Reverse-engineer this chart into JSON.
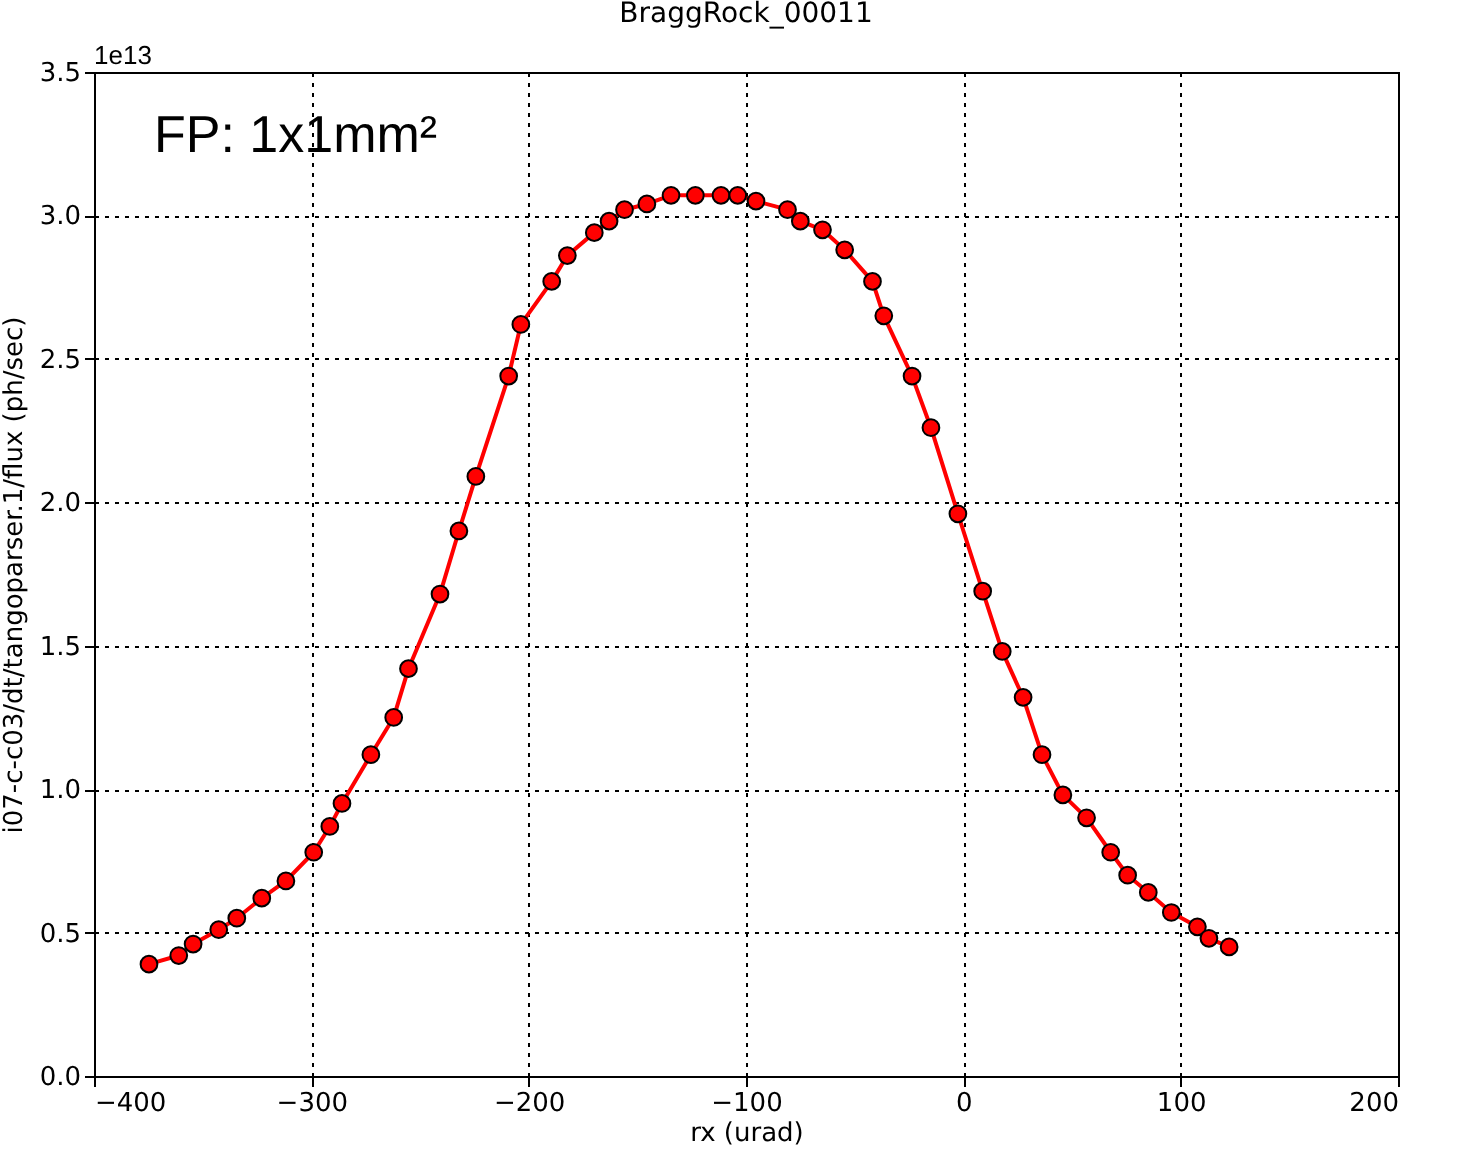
{
  "chart_data": {
    "type": "line",
    "title": "BraggRock_00011",
    "xlabel": "rx (urad)",
    "ylabel": "i07-c-c03/dt/tangoparser.1/flux (ph/sec)",
    "annotations": [
      "1e13",
      "FP: 1x1mm²"
    ],
    "xlim": [
      -400,
      200
    ],
    "xticks": [
      -400,
      -300,
      -200,
      -100,
      0,
      100,
      200
    ],
    "ylim": [
      0,
      3.5
    ],
    "yticks": [
      {
        "value": 0,
        "label": "0.0"
      },
      {
        "value": 0.5,
        "label": "0.5"
      },
      {
        "value": 1,
        "label": "1.0"
      },
      {
        "value": 1.5,
        "label": "1.5"
      },
      {
        "value": 2,
        "label": "2.0"
      },
      {
        "value": 2.5,
        "label": "2.5"
      },
      {
        "value": 3,
        "label": "3.0"
      },
      {
        "value": 3.5,
        "label": "3.5"
      }
    ],
    "grid": true,
    "marker": "circle",
    "line_style": "solid",
    "series": [
      {
        "color": "#ff0000",
        "x": [
          -374.7,
          -361,
          -354.4,
          -342.6,
          -334.3,
          -322.8,
          -311.7,
          -298.9,
          -291.5,
          -285.9,
          -272.6,
          -262.1,
          -255.3,
          -240.8,
          -232.1,
          -224.3,
          -209.2,
          -203.6,
          -189.4,
          -182.2,
          -169.8,
          -163,
          -155.9,
          -145.6,
          -134.5,
          -123.3,
          -111.5,
          -103.8,
          -95.4,
          -80.9,
          -75,
          -64.8,
          -54.6,
          -41.8,
          -36.6,
          -23.6,
          -14.9,
          -2.5,
          8.9,
          17.9,
          27.5,
          36.2,
          45.8,
          56.7,
          67.8,
          75.6,
          85.1,
          95.7,
          107.7,
          113,
          122.3
        ],
        "values": [
          0.39,
          0.42,
          0.46,
          0.51,
          0.55,
          0.62,
          0.68,
          0.78,
          0.87,
          0.95,
          1.12,
          1.25,
          1.42,
          1.68,
          1.9,
          2.09,
          2.44,
          2.62,
          2.77,
          2.86,
          2.94,
          2.98,
          3.02,
          3.04,
          3.07,
          3.07,
          3.07,
          3.07,
          3.05,
          3.02,
          2.98,
          2.95,
          2.88,
          2.77,
          2.65,
          2.44,
          2.26,
          1.96,
          1.69,
          1.48,
          1.32,
          1.12,
          0.98,
          0.9,
          0.78,
          0.7,
          0.64,
          0.57,
          0.52,
          0.48,
          0.45
        ]
      }
    ]
  }
}
